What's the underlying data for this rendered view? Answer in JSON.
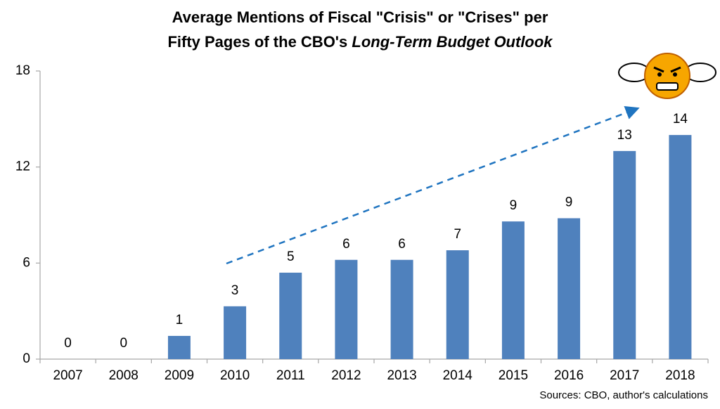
{
  "chart_data": {
    "type": "bar",
    "title": [
      "Average Mentions of Fiscal \"Crisis\" or \"Crises\" per",
      "Fifty Pages of the CBO's ",
      "Long-Term Budget Outlook"
    ],
    "categories": [
      "2007",
      "2008",
      "2009",
      "2010",
      "2011",
      "2012",
      "2013",
      "2014",
      "2015",
      "2016",
      "2017",
      "2018"
    ],
    "values": [
      0,
      0,
      1.45,
      3.3,
      5.4,
      6.2,
      6.2,
      6.8,
      8.6,
      8.8,
      13.0,
      14.0
    ],
    "value_labels": [
      "0",
      "0",
      "1",
      "3",
      "5",
      "6",
      "6",
      "7",
      "9",
      "9",
      "13",
      "14"
    ],
    "color": "#4f81bd",
    "label_color": "#1f74c0",
    "ylim": [
      0,
      18
    ],
    "yticks": [
      0,
      6,
      12,
      18
    ],
    "grid": false,
    "note": "Sources: CBO, author's calculations"
  }
}
